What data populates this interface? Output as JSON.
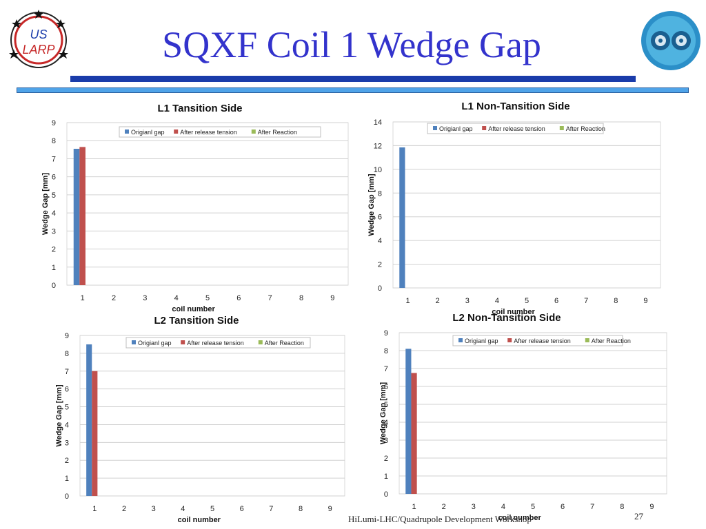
{
  "slide": {
    "title": "SQXF Coil 1 Wedge Gap",
    "logo_left_text": [
      "US",
      "LARP"
    ],
    "footer": "HiLumi-LHC/Quadrupole Development Workshop",
    "page_number": "27"
  },
  "colors": {
    "title": "#3333cc",
    "band_dark": "#1a3caa",
    "band_light": "#4fa3e8",
    "series": [
      "#4f81bd",
      "#c0504d",
      "#9bbb59"
    ]
  },
  "chart_data": [
    {
      "type": "bar",
      "title": "L1 Tansition Side",
      "xlabel": "coil number",
      "ylabel": "Wedge Gap [mm]",
      "categories": [
        "1",
        "2",
        "3",
        "4",
        "5",
        "6",
        "7",
        "8",
        "9"
      ],
      "ylim": [
        0,
        9
      ],
      "yticks": [
        0,
        1,
        2,
        3,
        4,
        5,
        6,
        7,
        8,
        9
      ],
      "grid": true,
      "legend": "top",
      "series": [
        {
          "name": "Origianl gap",
          "values": [
            7.55,
            null,
            null,
            null,
            null,
            null,
            null,
            null,
            null
          ]
        },
        {
          "name": "After release tension",
          "values": [
            7.65,
            null,
            null,
            null,
            null,
            null,
            null,
            null,
            null
          ]
        },
        {
          "name": "After Reaction",
          "values": [
            null,
            null,
            null,
            null,
            null,
            null,
            null,
            null,
            null
          ]
        }
      ]
    },
    {
      "type": "bar",
      "title": "L1 Non-Tansition Side",
      "xlabel": "coil number",
      "ylabel": "Wedge Gap [mm]",
      "categories": [
        "1",
        "2",
        "3",
        "4",
        "5",
        "6",
        "7",
        "8",
        "9"
      ],
      "ylim": [
        0,
        14
      ],
      "yticks": [
        0,
        2,
        4,
        6,
        8,
        10,
        12,
        14
      ],
      "grid": true,
      "legend": "top",
      "series": [
        {
          "name": "Origianl gap",
          "values": [
            11.85,
            null,
            null,
            null,
            null,
            null,
            null,
            null,
            null
          ]
        },
        {
          "name": "After release tension",
          "values": [
            null,
            null,
            null,
            null,
            null,
            null,
            null,
            null,
            null
          ]
        },
        {
          "name": "After Reaction",
          "values": [
            null,
            null,
            null,
            null,
            null,
            null,
            null,
            null,
            null
          ]
        }
      ]
    },
    {
      "type": "bar",
      "title": "L2 Tansition Side",
      "xlabel": "coil number",
      "ylabel": "Wedge Gap [mm]",
      "categories": [
        "1",
        "2",
        "3",
        "4",
        "5",
        "6",
        "7",
        "8",
        "9"
      ],
      "ylim": [
        0,
        9
      ],
      "yticks": [
        0,
        1,
        2,
        3,
        4,
        5,
        6,
        7,
        8,
        9
      ],
      "grid": true,
      "legend": "top",
      "series": [
        {
          "name": "Origianl gap",
          "values": [
            8.5,
            null,
            null,
            null,
            null,
            null,
            null,
            null,
            null
          ]
        },
        {
          "name": "After release tension",
          "values": [
            7.0,
            null,
            null,
            null,
            null,
            null,
            null,
            null,
            null
          ]
        },
        {
          "name": "After Reaction",
          "values": [
            null,
            null,
            null,
            null,
            null,
            null,
            null,
            null,
            null
          ]
        }
      ]
    },
    {
      "type": "bar",
      "title": "L2 Non-Tansition Side",
      "xlabel": "coil number",
      "ylabel": "Wedge Gap [mm]",
      "categories": [
        "1",
        "2",
        "3",
        "4",
        "5",
        "6",
        "7",
        "8",
        "9"
      ],
      "ylim": [
        0,
        9
      ],
      "yticks": [
        0,
        1,
        2,
        3,
        4,
        5,
        6,
        7,
        8,
        9
      ],
      "grid": true,
      "legend": "top",
      "series": [
        {
          "name": "Origianl gap",
          "values": [
            8.1,
            null,
            null,
            null,
            null,
            null,
            null,
            null,
            null
          ]
        },
        {
          "name": "After release tension",
          "values": [
            6.75,
            null,
            null,
            null,
            null,
            null,
            null,
            null,
            null
          ]
        },
        {
          "name": "After Reaction",
          "values": [
            null,
            null,
            null,
            null,
            null,
            null,
            null,
            null,
            null
          ]
        }
      ]
    }
  ]
}
